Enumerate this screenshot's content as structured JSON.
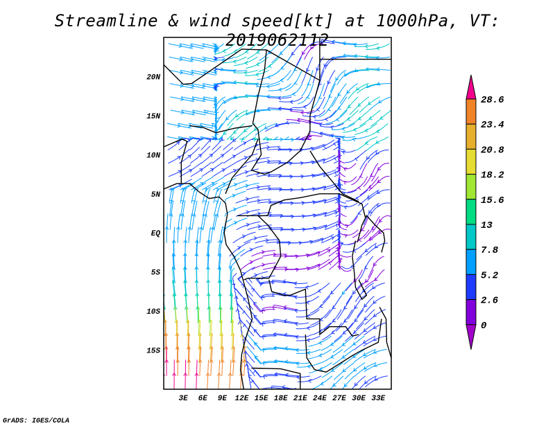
{
  "title": "Streamline & wind speed[kt] at 1000hPa, VT: 2019062112",
  "footer": "GrADS: IGES/COLA",
  "chart_data": {
    "type": "streamline",
    "title": "Streamline & wind speed[kt] at 1000hPa, VT: 2019062112",
    "variable": "wind speed",
    "units": "kt",
    "level": "1000hPa",
    "valid_time": "2019062112",
    "lon_range": [
      0,
      35
    ],
    "lat_range": [
      -20,
      25
    ],
    "x_ticks": [
      {
        "value": 3,
        "label": "3E"
      },
      {
        "value": 6,
        "label": "6E"
      },
      {
        "value": 9,
        "label": "9E"
      },
      {
        "value": 12,
        "label": "12E"
      },
      {
        "value": 15,
        "label": "15E"
      },
      {
        "value": 18,
        "label": "18E"
      },
      {
        "value": 21,
        "label": "21E"
      },
      {
        "value": 24,
        "label": "24E"
      },
      {
        "value": 27,
        "label": "27E"
      },
      {
        "value": 30,
        "label": "30E"
      },
      {
        "value": 33,
        "label": "33E"
      }
    ],
    "y_ticks": [
      {
        "value": 20,
        "label": "20N"
      },
      {
        "value": 15,
        "label": "15N"
      },
      {
        "value": 10,
        "label": "10N"
      },
      {
        "value": 5,
        "label": "5N"
      },
      {
        "value": 0,
        "label": "EQ"
      },
      {
        "value": -5,
        "label": "5S"
      },
      {
        "value": -10,
        "label": "10S"
      },
      {
        "value": -15,
        "label": "15S"
      }
    ],
    "colorbar": {
      "levels": [
        "0",
        "2.6",
        "5.2",
        "7.8",
        "13",
        "15.6",
        "18.2",
        "20.8",
        "23.4",
        "28.6"
      ],
      "level_values": [
        0,
        2.6,
        5.2,
        7.8,
        13,
        15.6,
        18.2,
        20.8,
        23.4,
        28.6
      ],
      "colors": [
        "#a000c8",
        "#8200dc",
        "#1e3cff",
        "#00a0ff",
        "#00c8c8",
        "#00dc82",
        "#a0e632",
        "#e6dc32",
        "#e6af2d",
        "#f08228",
        "#f0008c"
      ]
    }
  }
}
